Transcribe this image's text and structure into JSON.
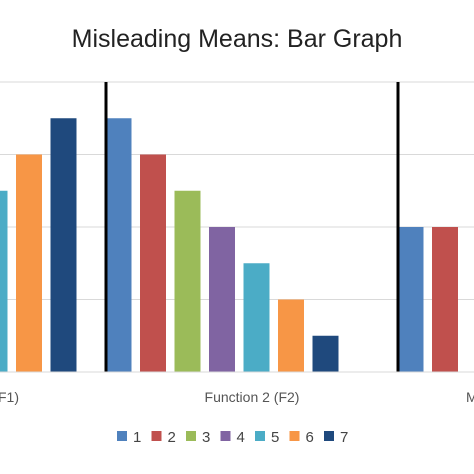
{
  "chart_data": {
    "type": "bar",
    "title": "Misleading Means: Bar Graph",
    "categories": [
      "F1)",
      "Function 2 (F2)",
      "M"
    ],
    "series": [
      {
        "name": "1",
        "color": "#4f81bd",
        "values": [
          null,
          7,
          4
        ]
      },
      {
        "name": "2",
        "color": "#c0504d",
        "values": [
          null,
          6,
          4
        ]
      },
      {
        "name": "3",
        "color": "#9bbb59",
        "values": [
          null,
          5,
          null
        ]
      },
      {
        "name": "4",
        "color": "#8064a2",
        "values": [
          null,
          4,
          null
        ]
      },
      {
        "name": "5",
        "color": "#4bacc6",
        "values": [
          5,
          3,
          null
        ]
      },
      {
        "name": "6",
        "color": "#f79646",
        "values": [
          6,
          2,
          null
        ]
      },
      {
        "name": "7",
        "color": "#1f497d",
        "values": [
          7,
          1,
          null
        ]
      }
    ],
    "ylim": [
      0,
      8
    ],
    "grid": true,
    "legend_position": "bottom",
    "separators": "vertical lines between groups"
  }
}
